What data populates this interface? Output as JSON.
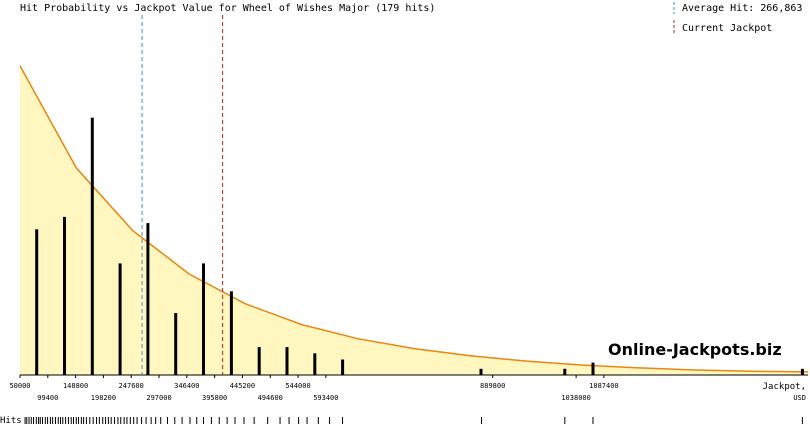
{
  "chart_data": {
    "type": "bar",
    "title": "Hit Probability vs Jackpot Value for Wheel of Wishes Major (179 hits)",
    "xlabel": "Jackpot, USD",
    "hits_label": "Hits",
    "watermark": "Online-Jackpots.biz",
    "xlim": [
      50000,
      1450000
    ],
    "ylim": [
      0,
      100
    ],
    "x_ticks_top": [
      "50000",
      "148800",
      "247600",
      "346400",
      "445200",
      "544000",
      "889800",
      "1087400"
    ],
    "x_ticks_bottom": [
      "99400",
      "198200",
      "297000",
      "395800",
      "494600",
      "593400",
      "1038000"
    ],
    "bars": {
      "x": [
        79700,
        129100,
        178500,
        227900,
        277300,
        326700,
        376100,
        425500,
        474900,
        524300,
        573700,
        623100,
        869000,
        1018000,
        1068000,
        1440000
      ],
      "values": [
        47,
        51,
        83,
        36,
        49,
        20,
        36,
        27,
        9,
        9,
        7,
        5,
        2,
        2,
        4,
        2
      ]
    },
    "curve": {
      "x": [
        50000,
        150000,
        250000,
        350000,
        450000,
        550000,
        650000,
        750000,
        850000,
        950000,
        1050000,
        1150000,
        1250000,
        1350000,
        1450000
      ],
      "values": [
        99.7,
        66.8,
        46.6,
        32.6,
        23.0,
        16.3,
        11.7,
        8.5,
        6.2,
        4.5,
        3.2,
        2.3,
        1.6,
        1.2,
        1.0
      ]
    },
    "reference_lines": [
      {
        "label": "Average Hit: 266,863",
        "x": 266863,
        "color": "#3b8fd6",
        "style": "dashed"
      },
      {
        "label": "Current Jackpot",
        "x": 410000,
        "color": "#b22222",
        "style": "dashed"
      }
    ],
    "hit_ticks_x": [
      59000,
      62000,
      66000,
      70000,
      74000,
      79000,
      83000,
      86000,
      90000,
      95000,
      99000,
      104000,
      108000,
      113000,
      118000,
      122000,
      126000,
      131000,
      136000,
      141000,
      145000,
      150000,
      154000,
      159000,
      163000,
      168000,
      174000,
      180000,
      186000,
      191000,
      197000,
      202000,
      207000,
      212000,
      218000,
      224000,
      229000,
      235000,
      240000,
      246000,
      252000,
      258000,
      266000,
      274000,
      283000,
      291000,
      300000,
      312000,
      325000,
      338000,
      352000,
      364000,
      376000,
      390000,
      404000,
      418000,
      432000,
      448000,
      466000,
      490000,
      512000,
      528000,
      545000,
      560000,
      580000,
      600000,
      623000,
      870000,
      1018000,
      1068000,
      1440000
    ],
    "grid": false,
    "colors": {
      "area_fill": "#fff6c0",
      "curve": "#e8870e",
      "bars": "#000000",
      "watermark": "#f5cf95"
    }
  }
}
